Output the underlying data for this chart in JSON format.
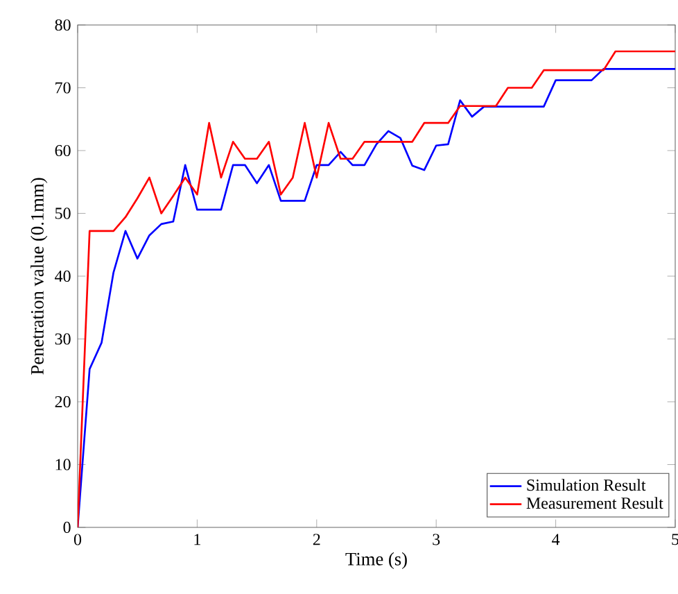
{
  "chart_data": {
    "type": "line",
    "xlabel": "Time (s)",
    "ylabel": "Penetration value (0.1mm)",
    "xlim": [
      0,
      5
    ],
    "ylim": [
      0,
      80
    ],
    "xticks": [
      0,
      1,
      2,
      3,
      4,
      5
    ],
    "yticks": [
      0,
      10,
      20,
      30,
      40,
      50,
      60,
      70,
      80
    ],
    "grid": false,
    "legend": "bottom right",
    "marker": "none",
    "line_style": "solid",
    "series": [
      {
        "name": "Simulation Result",
        "color": "#0000ff",
        "x": [
          0,
          0.1,
          0.2,
          0.3,
          0.4,
          0.5,
          0.6,
          0.7,
          0.8,
          0.9,
          1.0,
          1.2,
          1.3,
          1.4,
          1.5,
          1.6,
          1.7,
          1.9,
          2.0,
          2.1,
          2.2,
          2.3,
          2.4,
          2.5,
          2.6,
          2.7,
          2.8,
          2.9,
          3.0,
          3.1,
          3.2,
          3.3,
          3.4,
          3.9,
          4.0,
          4.3,
          4.4,
          5.0
        ],
        "values": [
          0,
          25.2,
          29.4,
          40.6,
          47.2,
          42.8,
          46.5,
          48.3,
          48.7,
          57.7,
          50.6,
          50.6,
          57.7,
          57.7,
          54.8,
          57.7,
          52,
          52,
          57.7,
          57.7,
          59.8,
          57.7,
          57.7,
          61,
          63.1,
          62,
          57.6,
          56.9,
          60.8,
          61,
          68,
          65.4,
          67,
          67,
          71.2,
          71.2,
          73,
          73
        ]
      },
      {
        "name": "Measurement Result",
        "color": "#ff0000",
        "x": [
          0,
          0.1,
          0.3,
          0.4,
          0.5,
          0.6,
          0.7,
          0.8,
          0.9,
          1.0,
          1.1,
          1.2,
          1.3,
          1.4,
          1.5,
          1.6,
          1.7,
          1.8,
          1.9,
          2.0,
          2.1,
          2.2,
          2.3,
          2.4,
          2.8,
          2.9,
          3.1,
          3.2,
          3.5,
          3.6,
          3.8,
          3.9,
          4.4,
          4.5,
          5.0
        ],
        "values": [
          0,
          47.2,
          47.2,
          49.4,
          52.4,
          55.7,
          50,
          52.8,
          55.7,
          53,
          64.4,
          55.7,
          61.4,
          58.7,
          58.7,
          61.4,
          53,
          55.7,
          64.4,
          55.7,
          64.4,
          58.7,
          58.7,
          61.4,
          61.4,
          64.4,
          64.4,
          67.1,
          67.1,
          70,
          70,
          72.8,
          72.8,
          75.8,
          75.8
        ]
      }
    ]
  }
}
